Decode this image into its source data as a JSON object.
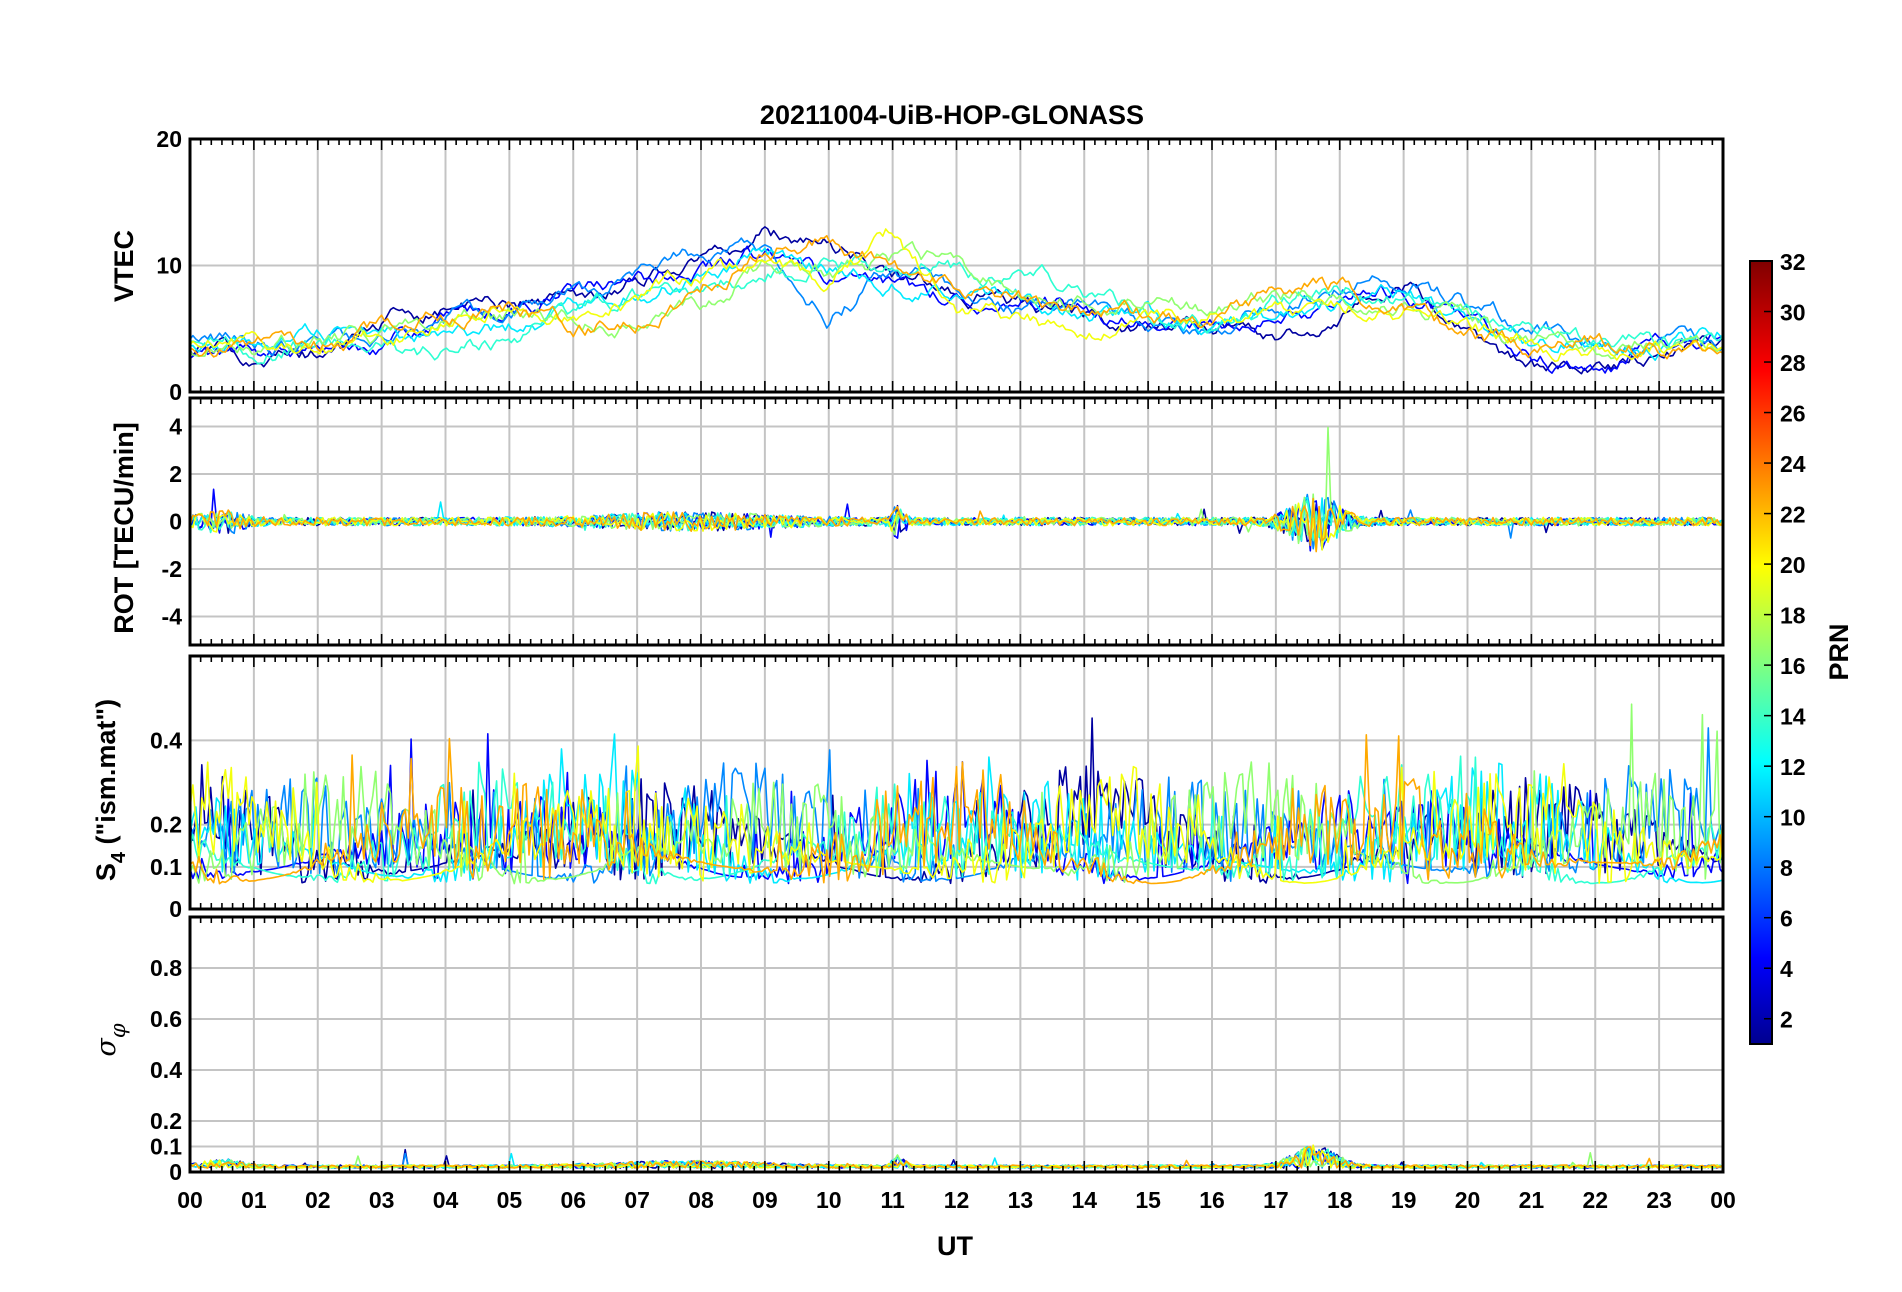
{
  "chart_data": {
    "type": "line",
    "title": "20211004-UiB-HOP-GLONASS",
    "xlabel": "UT",
    "x_ticks": [
      "00",
      "01",
      "02",
      "03",
      "04",
      "05",
      "06",
      "07",
      "08",
      "09",
      "10",
      "11",
      "12",
      "13",
      "14",
      "15",
      "16",
      "17",
      "18",
      "19",
      "20",
      "21",
      "22",
      "23",
      "00"
    ],
    "xlim_hours": [
      0,
      24
    ],
    "grid": true,
    "panels": [
      {
        "id": "vtec",
        "ylabel": "VTEC",
        "ylim": [
          0,
          20
        ],
        "yticks": [
          0,
          10,
          20
        ],
        "ytick_labels": [
          "0",
          "10",
          "20"
        ]
      },
      {
        "id": "rot",
        "ylabel": "ROT [TECU/min]",
        "ylim": [
          -5.2,
          5.2
        ],
        "yticks": [
          -4,
          -2,
          0,
          2,
          4
        ],
        "ytick_labels": [
          "-4",
          "-2",
          "0",
          "2",
          "4"
        ]
      },
      {
        "id": "s4",
        "ylabel_main": "S",
        "ylabel_sub": "4",
        "ylabel_rest": " (\"ism.mat\")",
        "ylim": [
          0,
          0.6
        ],
        "yticks": [
          0,
          0.1,
          0.2,
          0.4
        ],
        "ytick_labels": [
          "0",
          "0.1",
          "0.2",
          "0.4"
        ]
      },
      {
        "id": "sigma",
        "ylabel_main": "σ",
        "ylabel_sub": "φ",
        "ylim": [
          0,
          1
        ],
        "yticks": [
          0,
          0.1,
          0.2,
          0.4,
          0.6,
          0.8
        ],
        "ytick_labels": [
          "0",
          "0.1",
          "0.2",
          "0.4",
          "0.6",
          "0.8"
        ]
      }
    ],
    "colorbar": {
      "label": "PRN",
      "range": [
        1,
        32
      ],
      "ticks": [
        2,
        4,
        6,
        8,
        10,
        12,
        14,
        16,
        18,
        20,
        22,
        24,
        26,
        28,
        30,
        32
      ],
      "tick_labels": [
        "2",
        "4",
        "6",
        "8",
        "10",
        "12",
        "14",
        "16",
        "18",
        "20",
        "22",
        "24",
        "26",
        "28",
        "30",
        "32"
      ],
      "colormap": "jet"
    },
    "series": [
      {
        "prn": 2,
        "vtec": [
          [
            0,
            3.2
          ],
          [
            1,
            3.0
          ],
          [
            2,
            2.8
          ],
          [
            3,
            5.5
          ],
          [
            4,
            6.8
          ],
          [
            5,
            7.0
          ],
          [
            6,
            7.5
          ],
          [
            7,
            9.0
          ],
          [
            8,
            10.5
          ],
          [
            9,
            12.5
          ],
          [
            10,
            11.8
          ],
          [
            11,
            9.0
          ],
          [
            12,
            8.0
          ],
          [
            13,
            7.0
          ],
          [
            14,
            6.0
          ],
          [
            15,
            5.5
          ],
          [
            16,
            5.2
          ],
          [
            17,
            4.5
          ],
          [
            18,
            6.0
          ],
          [
            19,
            8.5
          ],
          [
            20,
            4.0
          ],
          [
            21,
            2.0
          ],
          [
            22,
            1.5
          ],
          [
            23,
            3.5
          ],
          [
            24,
            4.5
          ]
        ]
      },
      {
        "prn": 5,
        "vtec": [
          [
            0,
            2.5
          ],
          [
            1,
            3.2
          ],
          [
            2,
            3.0
          ],
          [
            3,
            4.0
          ],
          [
            4,
            5.5
          ],
          [
            5,
            6.5
          ],
          [
            6,
            7.8
          ],
          [
            7,
            8.5
          ],
          [
            8,
            9.8
          ],
          [
            9,
            11.0
          ],
          [
            10,
            9.0
          ],
          [
            11,
            8.0
          ],
          [
            12,
            7.5
          ],
          [
            13,
            7.2
          ],
          [
            14,
            6.2
          ],
          [
            15,
            5.0
          ],
          [
            16,
            5.4
          ],
          [
            17,
            5.5
          ],
          [
            18,
            7.5
          ],
          [
            19,
            8.0
          ],
          [
            20,
            5.5
          ],
          [
            21,
            3.0
          ],
          [
            22,
            1.0
          ],
          [
            23,
            3.8
          ],
          [
            24,
            4.2
          ]
        ]
      },
      {
        "prn": 9,
        "vtec": [
          [
            0,
            4.0
          ],
          [
            1,
            3.8
          ],
          [
            2,
            3.5
          ],
          [
            3,
            4.8
          ],
          [
            4,
            5.8
          ],
          [
            5,
            7.0
          ],
          [
            6,
            8.0
          ],
          [
            7,
            9.5
          ],
          [
            8,
            10.8
          ],
          [
            9,
            11.5
          ],
          [
            10,
            6.0
          ],
          [
            11,
            9.5
          ],
          [
            12,
            8.0
          ],
          [
            13,
            6.8
          ],
          [
            14,
            6.5
          ],
          [
            15,
            5.8
          ],
          [
            16,
            5.0
          ],
          [
            17,
            6.5
          ],
          [
            18,
            8.0
          ],
          [
            19,
            9.0
          ],
          [
            20,
            7.0
          ],
          [
            21,
            5.0
          ],
          [
            22,
            4.0
          ],
          [
            23,
            3.5
          ],
          [
            24,
            4.0
          ]
        ]
      },
      {
        "prn": 12,
        "vtec": [
          [
            0,
            3.5
          ],
          [
            1,
            3.8
          ],
          [
            2,
            4.5
          ],
          [
            3,
            5.0
          ],
          [
            4,
            4.0
          ],
          [
            5,
            5.0
          ],
          [
            6,
            6.5
          ],
          [
            7,
            8.0
          ],
          [
            8,
            9.0
          ],
          [
            9,
            11.0
          ],
          [
            10,
            9.5
          ],
          [
            11,
            8.5
          ],
          [
            12,
            7.8
          ],
          [
            13,
            7.5
          ],
          [
            14,
            6.0
          ],
          [
            15,
            6.5
          ],
          [
            16,
            5.2
          ],
          [
            17,
            6.0
          ],
          [
            18,
            7.0
          ],
          [
            19,
            7.5
          ],
          [
            20,
            6.0
          ],
          [
            21,
            4.5
          ],
          [
            22,
            3.8
          ],
          [
            23,
            3.5
          ],
          [
            24,
            4.3
          ]
        ]
      },
      {
        "prn": 14,
        "vtec": [
          [
            0,
            3.8
          ],
          [
            1,
            3.5
          ],
          [
            2,
            3.8
          ],
          [
            3,
            4.2
          ],
          [
            3.5,
            2.5
          ],
          [
            4,
            3.2
          ],
          [
            5,
            4.0
          ],
          [
            6,
            6.5
          ],
          [
            7,
            7.8
          ],
          [
            8,
            8.5
          ],
          [
            9,
            9.5
          ],
          [
            10,
            9.8
          ],
          [
            11,
            10.5
          ],
          [
            12,
            9.5
          ],
          [
            13,
            9.5
          ],
          [
            14,
            8.0
          ],
          [
            15,
            6.5
          ],
          [
            16,
            6.0
          ],
          [
            17,
            7.2
          ],
          [
            18,
            8.0
          ],
          [
            19,
            7.5
          ],
          [
            20,
            6.5
          ],
          [
            21,
            4.8
          ],
          [
            22,
            4.0
          ],
          [
            23,
            3.8
          ],
          [
            24,
            4.1
          ]
        ]
      },
      {
        "prn": 17,
        "vtec": [
          [
            0,
            3.0
          ],
          [
            1,
            3.5
          ],
          [
            2,
            4.2
          ],
          [
            3,
            4.5
          ],
          [
            4,
            5.8
          ],
          [
            5,
            6.2
          ],
          [
            6,
            6.0
          ],
          [
            7,
            5.5
          ],
          [
            8,
            7.0
          ],
          [
            9,
            10.0
          ],
          [
            10,
            9.5
          ],
          [
            11,
            10.5
          ],
          [
            12,
            9.8
          ],
          [
            13,
            8.0
          ],
          [
            14,
            7.0
          ],
          [
            15,
            6.8
          ],
          [
            16,
            6.5
          ],
          [
            17,
            7.5
          ],
          [
            18,
            7.8
          ],
          [
            19,
            7.0
          ],
          [
            20,
            5.5
          ],
          [
            21,
            4.0
          ],
          [
            22,
            3.5
          ],
          [
            23,
            3.8
          ],
          [
            24,
            4.0
          ]
        ]
      },
      {
        "prn": 20,
        "vtec": [
          [
            0,
            3.5
          ],
          [
            1,
            4.0
          ],
          [
            2,
            2.8
          ],
          [
            3,
            4.2
          ],
          [
            4,
            5.5
          ],
          [
            5,
            6.8
          ],
          [
            6,
            6.5
          ],
          [
            7,
            7.5
          ],
          [
            8,
            9.2
          ],
          [
            9,
            10.0
          ],
          [
            10,
            8.5
          ],
          [
            11,
            12.5
          ],
          [
            12,
            6.5
          ],
          [
            13,
            6.0
          ],
          [
            14,
            4.5
          ],
          [
            15,
            5.8
          ],
          [
            16,
            6.0
          ],
          [
            17,
            6.2
          ],
          [
            18,
            7.0
          ],
          [
            19,
            6.5
          ],
          [
            20,
            5.0
          ],
          [
            21,
            4.0
          ],
          [
            22,
            3.2
          ],
          [
            23,
            3.5
          ],
          [
            24,
            4.0
          ]
        ]
      },
      {
        "prn": 23,
        "vtec": [
          [
            0,
            3.2
          ],
          [
            1,
            3.5
          ],
          [
            2,
            3.6
          ],
          [
            3,
            4.8
          ],
          [
            4,
            6.0
          ],
          [
            5,
            6.8
          ],
          [
            6,
            5.0
          ],
          [
            7,
            5.8
          ],
          [
            8,
            8.0
          ],
          [
            9,
            11.5
          ],
          [
            10,
            12.0
          ],
          [
            11,
            10.0
          ],
          [
            12,
            8.5
          ],
          [
            13,
            7.5
          ],
          [
            14,
            6.8
          ],
          [
            15,
            6.0
          ],
          [
            16,
            5.8
          ],
          [
            17,
            8.0
          ],
          [
            18,
            8.5
          ],
          [
            19,
            6.5
          ],
          [
            20,
            4.5
          ],
          [
            21,
            3.5
          ],
          [
            22,
            3.8
          ],
          [
            23,
            3.6
          ],
          [
            24,
            4.0
          ]
        ]
      }
    ]
  }
}
